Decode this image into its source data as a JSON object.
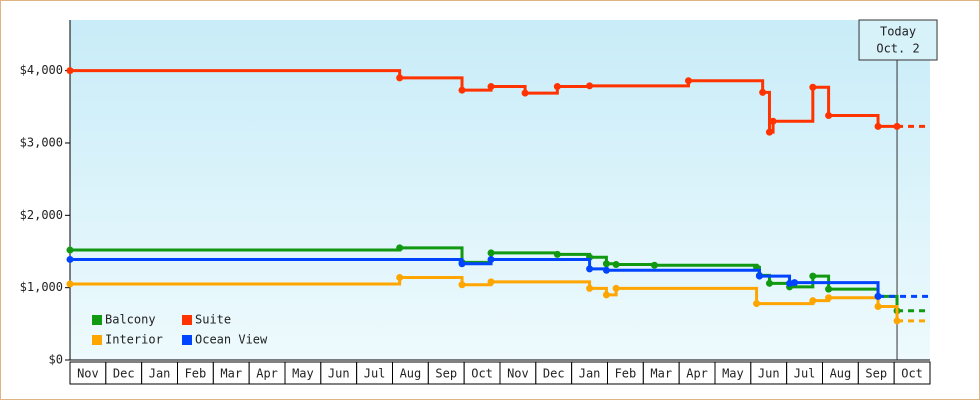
{
  "chart_data": {
    "type": "step",
    "categories": [
      "Nov",
      "Dec",
      "Jan",
      "Feb",
      "Mar",
      "Apr",
      "May",
      "Jun",
      "Jul",
      "Aug",
      "Sep",
      "Oct",
      "Nov",
      "Dec",
      "Jan",
      "Feb",
      "Mar",
      "Apr",
      "May",
      "Jun",
      "Jul",
      "Aug",
      "Sep",
      "Oct"
    ],
    "xlim": [
      0,
      24
    ],
    "ylim": [
      0,
      4700
    ],
    "yticks": [
      {
        "value": 0,
        "label": "$0"
      },
      {
        "value": 1000,
        "label": "$1,000"
      },
      {
        "value": 2000,
        "label": "$2,000"
      },
      {
        "value": 3000,
        "label": "$3,000"
      },
      {
        "value": 4000,
        "label": "$4,000"
      }
    ],
    "series": [
      {
        "name": "Balcony",
        "color": "#119911",
        "x": [
          0,
          9.2,
          10.94,
          11.75,
          13.6,
          14.5,
          14.97,
          15.24,
          16.31,
          19.16,
          19.24,
          19.52,
          20.08,
          20.73,
          21.17,
          22.55,
          23.08
        ],
        "values": [
          1520,
          1550,
          1350,
          1480,
          1460,
          1420,
          1330,
          1320,
          1310,
          1280,
          1170,
          1060,
          1010,
          1160,
          980,
          880,
          680
        ]
      },
      {
        "name": "Suite",
        "color": "#ff3300",
        "x": [
          0,
          9.2,
          10.94,
          11.75,
          12.7,
          13.6,
          14.5,
          17.26,
          19.33,
          19.52,
          19.62,
          20.73,
          21.17,
          22.55,
          23.08
        ],
        "values": [
          4000,
          3900,
          3730,
          3780,
          3690,
          3780,
          3790,
          3860,
          3700,
          3150,
          3300,
          3770,
          3380,
          3230,
          3230
        ]
      },
      {
        "name": "Interior",
        "color": "#ffa500",
        "x": [
          0,
          9.2,
          10.94,
          11.75,
          14.5,
          14.97,
          15.24,
          19.16,
          20.73,
          21.17,
          22.55,
          23.08
        ],
        "values": [
          1050,
          1140,
          1040,
          1080,
          990,
          900,
          990,
          780,
          820,
          860,
          740,
          540
        ]
      },
      {
        "name": "Ocean View",
        "color": "#0044ff",
        "x": [
          0,
          10.94,
          11.75,
          14.5,
          14.97,
          19.24,
          20.08,
          20.22,
          22.55
        ],
        "values": [
          1390,
          1330,
          1390,
          1260,
          1240,
          1160,
          1060,
          1070,
          880
        ]
      }
    ],
    "annotation": {
      "x": 23.08,
      "lines": [
        "Today",
        "Oct. 2"
      ]
    },
    "legend": "lower left"
  }
}
